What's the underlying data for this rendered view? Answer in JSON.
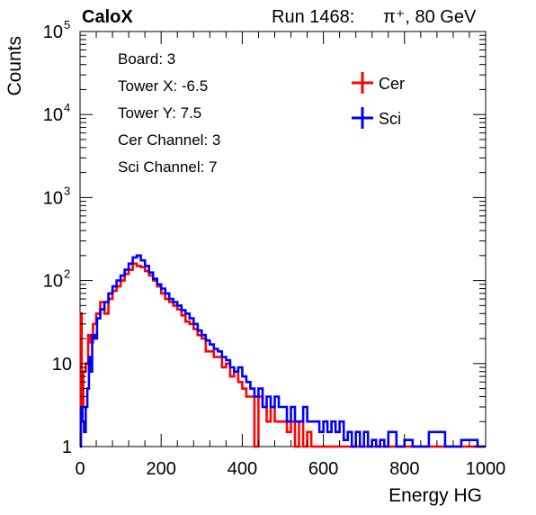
{
  "header": {
    "brand": "CaloX",
    "run_label": "Run 1468:",
    "particle": "π⁺, 80 GeV"
  },
  "info_box": {
    "lines": [
      "Board: 3",
      "Tower X: -6.5",
      "Tower Y: 7.5",
      "Cer Channel: 3",
      "Sci Channel: 7"
    ]
  },
  "legend": [
    {
      "label": "Cer",
      "color": "#ff0000"
    },
    {
      "label": "Sci",
      "color": "#0000ff"
    }
  ],
  "chart_data": {
    "type": "histogram",
    "xlabel": "Energy HG",
    "ylabel": "Counts",
    "xlim": [
      0,
      1000
    ],
    "ylim": [
      1,
      100000
    ],
    "y_scale": "log",
    "x_ticks": [
      "0",
      "200",
      "400",
      "600",
      "800",
      "1000"
    ],
    "y_ticks": [
      {
        "base": "1",
        "exp": ""
      },
      {
        "base": "10",
        "exp": ""
      },
      {
        "base": "10",
        "exp": "2"
      },
      {
        "base": "10",
        "exp": "3"
      },
      {
        "base": "10",
        "exp": "4"
      },
      {
        "base": "10",
        "exp": "5"
      }
    ],
    "grid": false,
    "legend_position": "top-right",
    "series": [
      {
        "name": "Cer",
        "color": "#ff0000",
        "points": [
          [
            0,
            1
          ],
          [
            2,
            40
          ],
          [
            4,
            3
          ],
          [
            8,
            8
          ],
          [
            14,
            10
          ],
          [
            20,
            22
          ],
          [
            26,
            18
          ],
          [
            32,
            30
          ],
          [
            40,
            40
          ],
          [
            50,
            55
          ],
          [
            60,
            40
          ],
          [
            70,
            60
          ],
          [
            80,
            75
          ],
          [
            90,
            85
          ],
          [
            100,
            100
          ],
          [
            110,
            120
          ],
          [
            120,
            135
          ],
          [
            130,
            160
          ],
          [
            140,
            150
          ],
          [
            150,
            145
          ],
          [
            160,
            130
          ],
          [
            170,
            115
          ],
          [
            180,
            100
          ],
          [
            190,
            85
          ],
          [
            200,
            70
          ],
          [
            210,
            60
          ],
          [
            220,
            55
          ],
          [
            230,
            50
          ],
          [
            240,
            45
          ],
          [
            250,
            38
          ],
          [
            260,
            32
          ],
          [
            270,
            30
          ],
          [
            280,
            26
          ],
          [
            290,
            22
          ],
          [
            300,
            20
          ],
          [
            310,
            14
          ],
          [
            320,
            14
          ],
          [
            330,
            12
          ],
          [
            340,
            12
          ],
          [
            350,
            9
          ],
          [
            360,
            10
          ],
          [
            370,
            7
          ],
          [
            380,
            8
          ],
          [
            390,
            6
          ],
          [
            400,
            5
          ],
          [
            410,
            4
          ],
          [
            420,
            4
          ],
          [
            430,
            1
          ],
          [
            440,
            4
          ],
          [
            450,
            3
          ],
          [
            460,
            2
          ],
          [
            470,
            3
          ],
          [
            480,
            2
          ],
          [
            490,
            2
          ],
          [
            500,
            2
          ],
          [
            510,
            1.5
          ],
          [
            520,
            2
          ],
          [
            530,
            1
          ],
          [
            540,
            2
          ],
          [
            550,
            1
          ],
          [
            560,
            1.5
          ],
          [
            570,
            1
          ],
          [
            1000,
            1
          ]
        ]
      },
      {
        "name": "Sci",
        "color": "#0000ff",
        "points": [
          [
            0,
            1
          ],
          [
            2,
            3
          ],
          [
            6,
            2
          ],
          [
            10,
            1.5
          ],
          [
            14,
            3
          ],
          [
            18,
            5
          ],
          [
            22,
            12
          ],
          [
            26,
            8
          ],
          [
            30,
            22
          ],
          [
            36,
            20
          ],
          [
            42,
            35
          ],
          [
            50,
            45
          ],
          [
            60,
            55
          ],
          [
            70,
            70
          ],
          [
            80,
            85
          ],
          [
            90,
            100
          ],
          [
            100,
            115
          ],
          [
            110,
            135
          ],
          [
            120,
            160
          ],
          [
            130,
            190
          ],
          [
            140,
            200
          ],
          [
            150,
            175
          ],
          [
            160,
            150
          ],
          [
            170,
            125
          ],
          [
            180,
            105
          ],
          [
            190,
            90
          ],
          [
            200,
            80
          ],
          [
            210,
            70
          ],
          [
            220,
            60
          ],
          [
            230,
            55
          ],
          [
            240,
            50
          ],
          [
            250,
            44
          ],
          [
            260,
            40
          ],
          [
            270,
            35
          ],
          [
            280,
            30
          ],
          [
            290,
            25
          ],
          [
            300,
            22
          ],
          [
            310,
            19
          ],
          [
            320,
            17
          ],
          [
            330,
            15
          ],
          [
            340,
            14
          ],
          [
            350,
            12
          ],
          [
            360,
            11
          ],
          [
            370,
            9
          ],
          [
            380,
            8
          ],
          [
            390,
            9
          ],
          [
            400,
            7
          ],
          [
            410,
            6
          ],
          [
            420,
            5
          ],
          [
            430,
            4
          ],
          [
            440,
            5
          ],
          [
            450,
            3
          ],
          [
            460,
            4
          ],
          [
            470,
            3
          ],
          [
            480,
            4
          ],
          [
            490,
            3
          ],
          [
            500,
            3
          ],
          [
            510,
            2
          ],
          [
            520,
            3
          ],
          [
            530,
            2
          ],
          [
            540,
            2
          ],
          [
            550,
            3
          ],
          [
            560,
            2
          ],
          [
            570,
            2
          ],
          [
            580,
            2
          ],
          [
            590,
            1.5
          ],
          [
            600,
            2
          ],
          [
            610,
            1.5
          ],
          [
            620,
            2
          ],
          [
            630,
            1.5
          ],
          [
            640,
            2
          ],
          [
            650,
            1.2
          ],
          [
            660,
            1.5
          ],
          [
            670,
            1
          ],
          [
            680,
            1.5
          ],
          [
            690,
            1
          ],
          [
            700,
            1.5
          ],
          [
            710,
            1
          ],
          [
            720,
            1.2
          ],
          [
            730,
            1
          ],
          [
            740,
            1.2
          ],
          [
            750,
            1
          ],
          [
            760,
            1.5
          ],
          [
            780,
            1
          ],
          [
            800,
            1.2
          ],
          [
            820,
            1
          ],
          [
            860,
            1.5
          ],
          [
            900,
            1
          ],
          [
            940,
            1.2
          ],
          [
            980,
            1
          ],
          [
            1000,
            1
          ]
        ]
      }
    ]
  }
}
